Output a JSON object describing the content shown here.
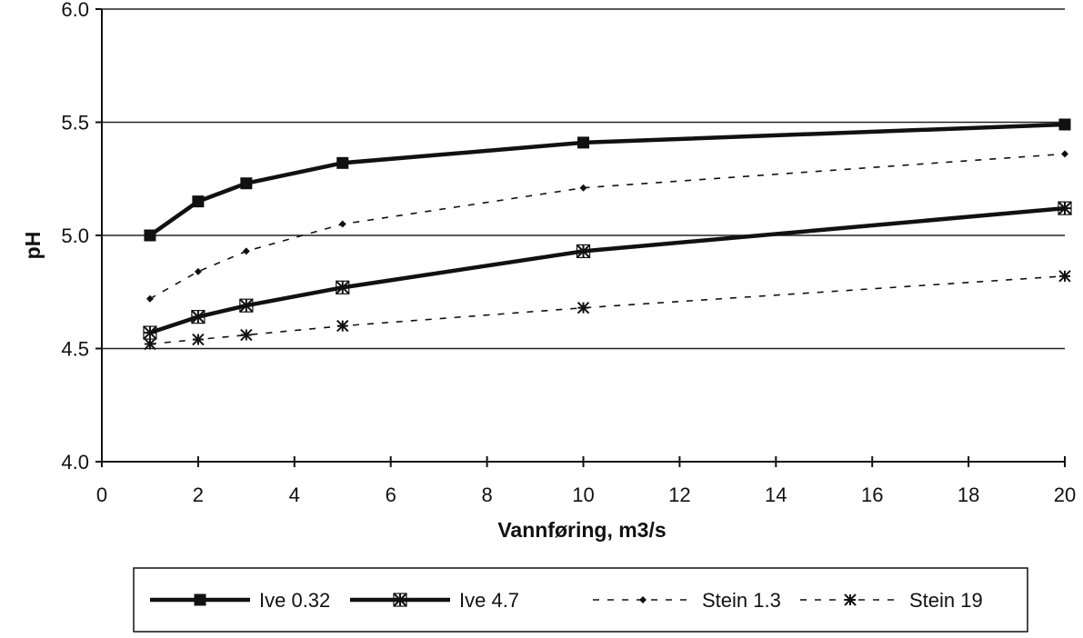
{
  "chart_data": {
    "type": "line",
    "xlabel": "Vannføring, m3/s",
    "ylabel": "pH",
    "ylim": [
      4.0,
      6.0
    ],
    "y_ticks": [
      "4.0",
      "4.5",
      "5.0",
      "5.5",
      "6.0"
    ],
    "y_tick_values": [
      4.0,
      4.5,
      5.0,
      5.5,
      6.0
    ],
    "x_ticks": [
      "0",
      "2",
      "4",
      "6",
      "8",
      "10",
      "12",
      "14",
      "16",
      "18",
      "20"
    ],
    "x_tick_positions": [
      0,
      1,
      2,
      3,
      4,
      5,
      6,
      7,
      8,
      9,
      10
    ],
    "categories": [
      1,
      2,
      3,
      5,
      10,
      20
    ],
    "category_positions": [
      0.5,
      1,
      1.5,
      2.5,
      5,
      10
    ],
    "grid": "horizontal",
    "legend_position": "bottom",
    "series": [
      {
        "name": "Ive 0.32",
        "values": [
          5.0,
          5.15,
          5.23,
          5.32,
          5.41,
          5.49
        ],
        "style": "solid-thick",
        "marker": "square",
        "color": "#111111"
      },
      {
        "name": "Ive 4.7",
        "values": [
          4.57,
          4.64,
          4.69,
          4.77,
          4.93,
          5.12
        ],
        "style": "solid-thick",
        "marker": "asterisk-box",
        "color": "#111111"
      },
      {
        "name": "Stein 1.3",
        "values": [
          4.72,
          4.84,
          4.93,
          5.05,
          5.21,
          5.36
        ],
        "style": "dashed",
        "marker": "diamond",
        "color": "#111111"
      },
      {
        "name": "Stein 19",
        "values": [
          4.52,
          4.54,
          4.56,
          4.6,
          4.68,
          4.82
        ],
        "style": "dashed",
        "marker": "asterisk",
        "color": "#111111"
      }
    ]
  }
}
